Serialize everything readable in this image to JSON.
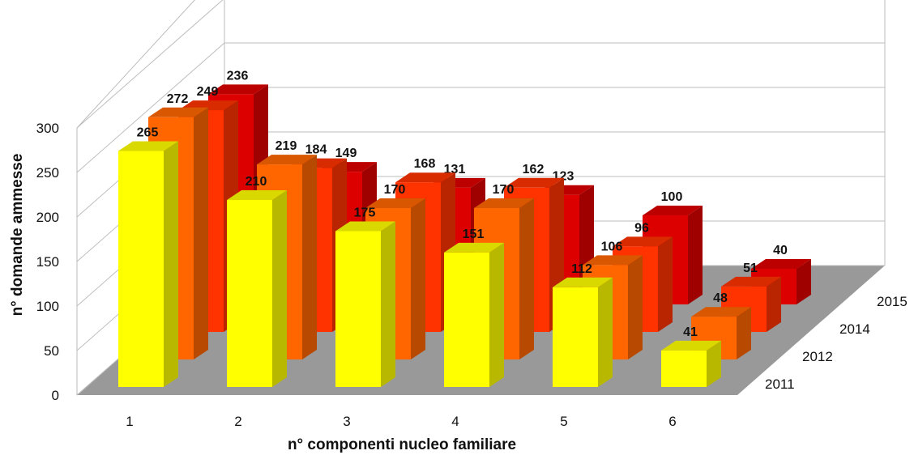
{
  "chart_data": {
    "type": "bar",
    "categories": [
      "1",
      "2",
      "3",
      "4",
      "5",
      "6"
    ],
    "series": [
      {
        "name": "2011",
        "values": [
          265,
          210,
          175,
          151,
          112,
          41
        ],
        "color": "#ffff00"
      },
      {
        "name": "2012",
        "values": [
          272,
          219,
          170,
          170,
          106,
          48
        ],
        "color": "#ff6600"
      },
      {
        "name": "2014",
        "values": [
          249,
          184,
          168,
          162,
          96,
          51
        ],
        "color": "#ff3300"
      },
      {
        "name": "2015",
        "values": [
          236,
          149,
          131,
          123,
          100,
          40
        ],
        "color": "#dd0000"
      }
    ],
    "xlabel": "n° componenti nucleo familiare",
    "ylabel": "n° domande ammesse",
    "ylim": [
      0,
      300
    ],
    "yticks": [
      0,
      50,
      100,
      150,
      200,
      250,
      300
    ],
    "grid": true
  }
}
